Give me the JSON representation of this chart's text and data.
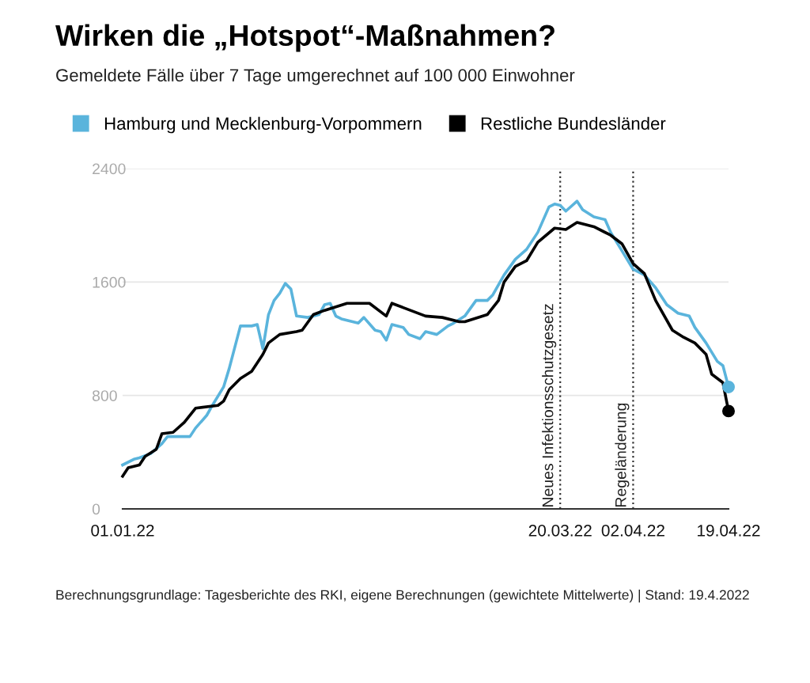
{
  "chart_data": {
    "type": "line",
    "title": "Wirken die „Hotspot“-Maßnahmen?",
    "subtitle": "Gemeldete Fälle über 7 Tage umgerechnet auf 100 000 Einwohner",
    "series": [
      {
        "name": "Hamburg und Mecklenburg-Vorpommern",
        "color": "#5ab4dc",
        "x": [
          "2022-01-01",
          "2022-01-03",
          "2022-01-04",
          "2022-01-06",
          "2022-01-08",
          "2022-01-09",
          "2022-01-12",
          "2022-01-13",
          "2022-01-14",
          "2022-01-16",
          "2022-01-17",
          "2022-01-19",
          "2022-01-20",
          "2022-01-22",
          "2022-01-24",
          "2022-01-25",
          "2022-01-26",
          "2022-01-27",
          "2022-01-28",
          "2022-01-29",
          "2022-01-30",
          "2022-01-31",
          "2022-02-01",
          "2022-02-03",
          "2022-02-05",
          "2022-02-06",
          "2022-02-07",
          "2022-02-08",
          "2022-02-09",
          "2022-02-12",
          "2022-02-13",
          "2022-02-15",
          "2022-02-16",
          "2022-02-17",
          "2022-02-18",
          "2022-02-20",
          "2022-02-21",
          "2022-02-23",
          "2022-02-24",
          "2022-02-26",
          "2022-02-28",
          "2022-03-01",
          "2022-03-03",
          "2022-03-05",
          "2022-03-07",
          "2022-03-08",
          "2022-03-10",
          "2022-03-12",
          "2022-03-14",
          "2022-03-16",
          "2022-03-18",
          "2022-03-19",
          "2022-03-20",
          "2022-03-21",
          "2022-03-23",
          "2022-03-24",
          "2022-03-26",
          "2022-03-28",
          "2022-03-29",
          "2022-03-31",
          "2022-04-02",
          "2022-04-04",
          "2022-04-06",
          "2022-04-08",
          "2022-04-10",
          "2022-04-12",
          "2022-04-13",
          "2022-04-15",
          "2022-04-17",
          "2022-04-18",
          "2022-04-19"
        ],
        "values": [
          310,
          350,
          360,
          390,
          460,
          510,
          510,
          510,
          570,
          660,
          730,
          860,
          990,
          1290,
          1290,
          1300,
          1130,
          1370,
          1470,
          1520,
          1590,
          1550,
          1360,
          1350,
          1370,
          1440,
          1450,
          1360,
          1340,
          1310,
          1350,
          1260,
          1250,
          1190,
          1300,
          1280,
          1230,
          1200,
          1250,
          1230,
          1290,
          1310,
          1360,
          1470,
          1470,
          1510,
          1650,
          1760,
          1830,
          1950,
          2130,
          2150,
          2140,
          2100,
          2170,
          2110,
          2060,
          2040,
          1950,
          1820,
          1690,
          1650,
          1560,
          1440,
          1380,
          1360,
          1280,
          1170,
          1040,
          1010,
          860
        ]
      },
      {
        "name": "Restliche Bundesländer",
        "color": "#000000",
        "x": [
          "2022-01-01",
          "2022-01-02",
          "2022-01-04",
          "2022-01-05",
          "2022-01-07",
          "2022-01-08",
          "2022-01-10",
          "2022-01-12",
          "2022-01-14",
          "2022-01-18",
          "2022-01-19",
          "2022-01-20",
          "2022-01-22",
          "2022-01-24",
          "2022-01-26",
          "2022-01-27",
          "2022-01-29",
          "2022-02-01",
          "2022-02-02",
          "2022-02-04",
          "2022-02-06",
          "2022-02-10",
          "2022-02-11",
          "2022-02-14",
          "2022-02-17",
          "2022-02-18",
          "2022-02-20",
          "2022-02-24",
          "2022-02-27",
          "2022-03-02",
          "2022-03-03",
          "2022-03-07",
          "2022-03-09",
          "2022-03-10",
          "2022-03-12",
          "2022-03-14",
          "2022-03-16",
          "2022-03-19",
          "2022-03-21",
          "2022-03-23",
          "2022-03-26",
          "2022-03-29",
          "2022-03-31",
          "2022-04-02",
          "2022-04-04",
          "2022-04-06",
          "2022-04-09",
          "2022-04-11",
          "2022-04-13",
          "2022-04-15",
          "2022-04-16",
          "2022-04-18",
          "2022-04-19"
        ],
        "values": [
          230,
          290,
          310,
          370,
          420,
          530,
          540,
          610,
          710,
          730,
          760,
          840,
          920,
          970,
          1090,
          1170,
          1230,
          1250,
          1260,
          1370,
          1400,
          1450,
          1450,
          1450,
          1360,
          1450,
          1420,
          1360,
          1350,
          1320,
          1320,
          1370,
          1470,
          1600,
          1710,
          1750,
          1880,
          1980,
          1970,
          2020,
          1990,
          1930,
          1870,
          1730,
          1660,
          1470,
          1260,
          1210,
          1170,
          1090,
          950,
          890,
          690
        ]
      },
      {
        "type": "scatter",
        "color": "#5ab4dc",
        "x": [
          "2022-04-19"
        ],
        "values": [
          860
        ]
      },
      {
        "type": "scatter",
        "color": "#000000",
        "x": [
          "2022-04-19"
        ],
        "values": [
          690
        ]
      }
    ],
    "xlim": [
      "2022-01-01",
      "2022-04-19"
    ],
    "xticks": [
      {
        "value": "2022-01-01",
        "label": "01.01.22"
      },
      {
        "value": "2022-03-20",
        "label": "20.03.22"
      },
      {
        "value": "2022-04-02",
        "label": "02.04.22"
      },
      {
        "value": "2022-04-19",
        "label": "19.04.22"
      }
    ],
    "ylim": [
      0,
      2400
    ],
    "yticks": [
      0,
      800,
      1600,
      2400
    ],
    "grid": "y",
    "legend": "top left",
    "ref_lines": [
      {
        "axis": "x",
        "value": "2022-03-20",
        "label": "Neues Infektionsschutzgesetz",
        "color": "#333333",
        "line_style": "dotted"
      },
      {
        "axis": "x",
        "value": "2022-04-02",
        "label": "Regeländerung",
        "color": "#333333",
        "line_style": "dotted"
      }
    ],
    "annotations": [
      "Berechnungsgrundlage: Tagesberichte des RKI, eigene Berechnungen (gewichtete Mittelwerte) | Stand: 19.4.2022"
    ]
  }
}
